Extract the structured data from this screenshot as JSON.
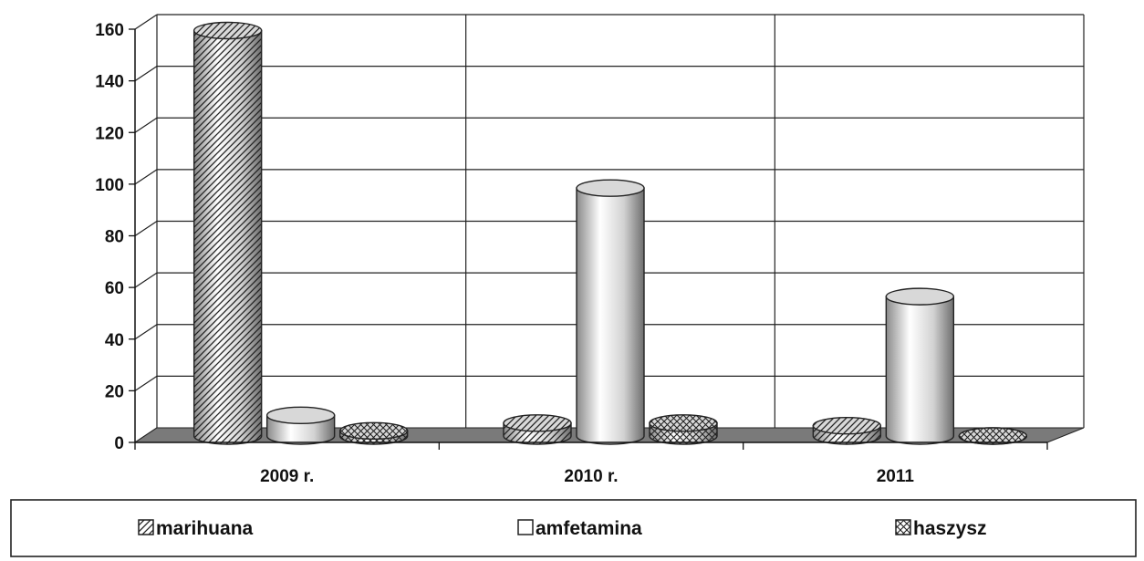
{
  "chart_data": {
    "type": "bar",
    "style": "3d-cylinder",
    "categories": [
      "2009 r.",
      "2010 r.",
      "2011"
    ],
    "series": [
      {
        "name": "marihuana",
        "values": [
          157,
          5,
          4
        ],
        "pattern": "diagonal-hatch"
      },
      {
        "name": "amfetamina",
        "values": [
          8,
          96,
          54
        ],
        "pattern": "plain"
      },
      {
        "name": "haszysz",
        "values": [
          2,
          5,
          0
        ],
        "pattern": "cross-hatch"
      }
    ],
    "ylim": [
      0,
      160
    ],
    "yticks": [
      0,
      20,
      40,
      60,
      80,
      100,
      120,
      140,
      160
    ],
    "grid": true,
    "legend_position": "bottom",
    "colors": {
      "gridline": "#222222",
      "floor": "#7a7a7a",
      "cylinder_light": "#ffffff",
      "cylinder_mid": "#d2d2d2",
      "cylinder_dark": "#8a8a8a"
    }
  }
}
